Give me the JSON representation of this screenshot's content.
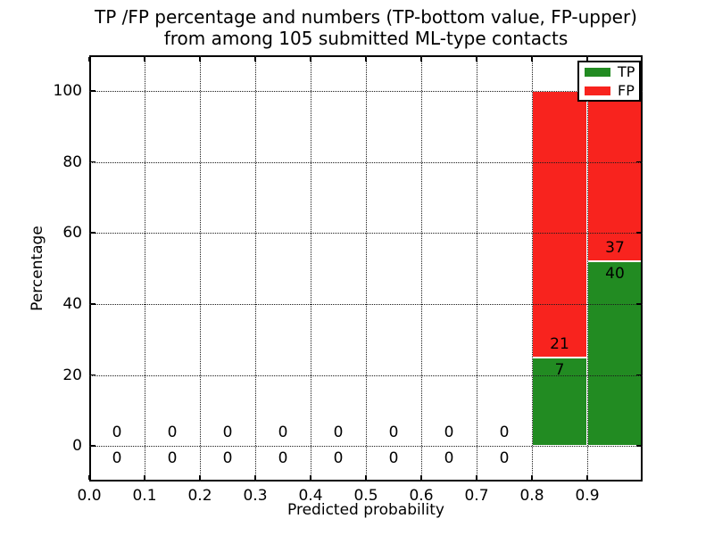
{
  "chart_data": {
    "type": "bar",
    "stacked": true,
    "title_line1": "TP /FP percentage and numbers (TP-bottom value, FP-upper)",
    "title_line2": "from among 105 submitted ML-type contacts",
    "xlabel": "Predicted probability",
    "ylabel": "Percentage",
    "total_contacts": 105,
    "xlim": [
      0.0,
      1.0
    ],
    "ylim": [
      -10,
      110
    ],
    "grid": true,
    "x_ticks": [
      "0.0",
      "0.1",
      "0.2",
      "0.3",
      "0.4",
      "0.5",
      "0.6",
      "0.7",
      "0.8",
      "0.9"
    ],
    "y_ticks": [
      0,
      20,
      40,
      60,
      80,
      100
    ],
    "bin_width": 0.1,
    "bins": [
      {
        "range": "0.0-0.1",
        "start": 0.0,
        "tp": 0,
        "fp": 0,
        "tp_pct": 0,
        "fp_pct": 0
      },
      {
        "range": "0.1-0.2",
        "start": 0.1,
        "tp": 0,
        "fp": 0,
        "tp_pct": 0,
        "fp_pct": 0
      },
      {
        "range": "0.2-0.3",
        "start": 0.2,
        "tp": 0,
        "fp": 0,
        "tp_pct": 0,
        "fp_pct": 0
      },
      {
        "range": "0.3-0.4",
        "start": 0.3,
        "tp": 0,
        "fp": 0,
        "tp_pct": 0,
        "fp_pct": 0
      },
      {
        "range": "0.4-0.5",
        "start": 0.4,
        "tp": 0,
        "fp": 0,
        "tp_pct": 0,
        "fp_pct": 0
      },
      {
        "range": "0.5-0.6",
        "start": 0.5,
        "tp": 0,
        "fp": 0,
        "tp_pct": 0,
        "fp_pct": 0
      },
      {
        "range": "0.6-0.7",
        "start": 0.6,
        "tp": 0,
        "fp": 0,
        "tp_pct": 0,
        "fp_pct": 0
      },
      {
        "range": "0.7-0.8",
        "start": 0.7,
        "tp": 0,
        "fp": 0,
        "tp_pct": 0,
        "fp_pct": 0
      },
      {
        "range": "0.8-0.9",
        "start": 0.8,
        "tp": 7,
        "fp": 21,
        "tp_pct": 25.0,
        "fp_pct": 75.0
      },
      {
        "range": "0.9-1.0",
        "start": 0.9,
        "tp": 40,
        "fp": 37,
        "tp_pct": 51.9,
        "fp_pct": 48.1
      }
    ],
    "colors": {
      "tp": "#228b22",
      "fp": "#f8231e",
      "grid": "#1a1a1a",
      "text": "#000000"
    },
    "legend": [
      {
        "label": "TP",
        "color": "#228b22"
      },
      {
        "label": "FP",
        "color": "#f8231e"
      }
    ],
    "legend_position": "upper right"
  }
}
